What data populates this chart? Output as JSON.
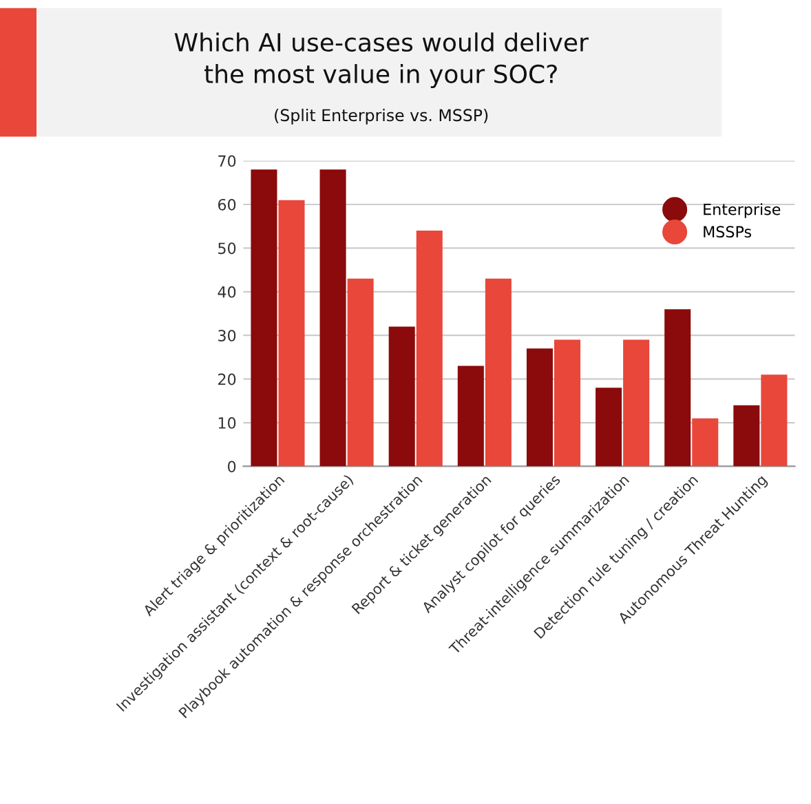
{
  "chart_data": {
    "type": "bar",
    "title": "Which AI use-cases would deliver\nthe most value in your SOC?",
    "subtitle": "(Split Enterprise vs. MSSP)",
    "categories": [
      "Alert triage & prioritization",
      "Investigation assistant (context & root-cause)",
      "Playbook automation & response orchestration",
      "Report & ticket generation",
      "Analyst copilot for queries",
      "Threat-intelligence summarization",
      "Detection rule tuning / creation",
      "Autonomous Threat Hunting"
    ],
    "series": [
      {
        "name": "Enterprise",
        "color": "#8b0a0c",
        "values": [
          68,
          68,
          32,
          23,
          27,
          18,
          36,
          14
        ]
      },
      {
        "name": "MSSPs",
        "color": "#e8473a",
        "values": [
          61,
          43,
          54,
          43,
          29,
          29,
          11,
          21
        ]
      }
    ],
    "ylim": [
      0,
      70
    ],
    "yticks": [
      0,
      10,
      20,
      30,
      40,
      50,
      60,
      70
    ],
    "grid": "y",
    "legend": "right",
    "marker": "circle"
  }
}
